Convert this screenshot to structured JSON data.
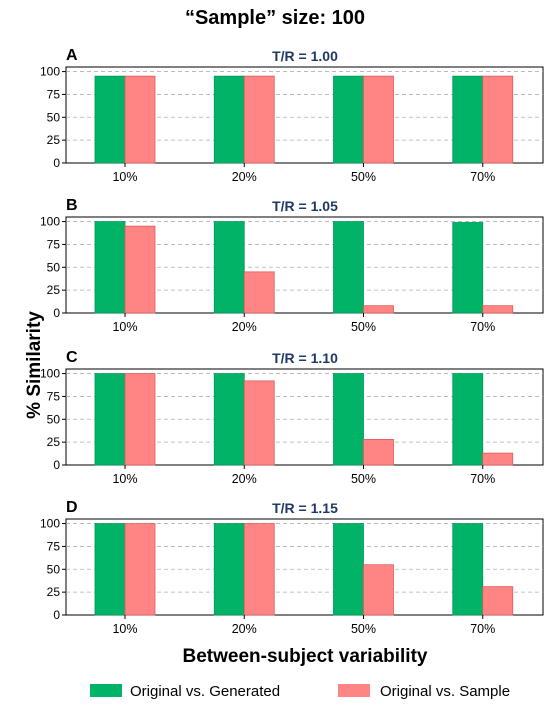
{
  "figure": {
    "title": "“Sample” size: 100",
    "ylabel": "% Similarity",
    "xlabel": "Between-subject variability"
  },
  "colors": {
    "generated": "#00b366",
    "sample": "#ff8585",
    "title_color": "#1f3864",
    "grid": "#b0b0b0"
  },
  "legend": {
    "placement": "bottom",
    "items": [
      "Original vs. Generated",
      "Original vs. Sample"
    ]
  },
  "chart_data": [
    {
      "type": "bar",
      "panel": "A",
      "title": "T/R = 1.00",
      "categories": [
        "10%",
        "20%",
        "50%",
        "70%"
      ],
      "series": [
        {
          "name": "Original vs. Generated",
          "values": [
            95,
            95,
            95,
            95
          ]
        },
        {
          "name": "Original vs. Sample",
          "values": [
            95,
            95,
            95,
            95
          ]
        }
      ],
      "yticks": [
        "0",
        "25",
        "50",
        "75",
        "100"
      ],
      "ylim": [
        0,
        105
      ],
      "grid": true
    },
    {
      "type": "bar",
      "panel": "B",
      "title": "T/R = 1.05",
      "categories": [
        "10%",
        "20%",
        "50%",
        "70%"
      ],
      "series": [
        {
          "name": "Original vs. Generated",
          "values": [
            100,
            100,
            100,
            99
          ]
        },
        {
          "name": "Original vs. Sample",
          "values": [
            95,
            45,
            8,
            8
          ]
        }
      ],
      "yticks": [
        "0",
        "25",
        "50",
        "75",
        "100"
      ],
      "ylim": [
        0,
        105
      ],
      "grid": true
    },
    {
      "type": "bar",
      "panel": "C",
      "title": "T/R = 1.10",
      "categories": [
        "10%",
        "20%",
        "50%",
        "70%"
      ],
      "series": [
        {
          "name": "Original vs. Generated",
          "values": [
            100,
            100,
            100,
            100
          ]
        },
        {
          "name": "Original vs. Sample",
          "values": [
            100,
            92,
            28,
            13
          ]
        }
      ],
      "yticks": [
        "0",
        "25",
        "50",
        "75",
        "100"
      ],
      "ylim": [
        0,
        105
      ],
      "grid": true
    },
    {
      "type": "bar",
      "panel": "D",
      "title": "T/R = 1.15",
      "categories": [
        "10%",
        "20%",
        "50%",
        "70%"
      ],
      "series": [
        {
          "name": "Original vs. Generated",
          "values": [
            100,
            100,
            100,
            100
          ]
        },
        {
          "name": "Original vs. Sample",
          "values": [
            100,
            100,
            55,
            31
          ]
        }
      ],
      "yticks": [
        "0",
        "25",
        "50",
        "75",
        "100"
      ],
      "ylim": [
        0,
        105
      ],
      "grid": true
    }
  ]
}
